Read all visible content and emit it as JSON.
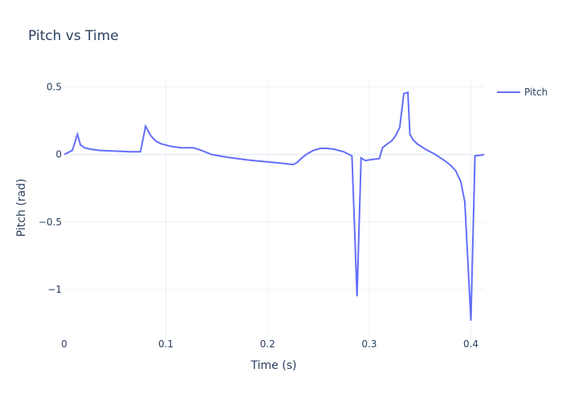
{
  "chart_data": {
    "type": "line",
    "title": "Pitch vs Time",
    "xlabel": "Time (s)",
    "ylabel": "Pitch (rad)",
    "xlim": [
      0,
      0.413
    ],
    "ylim": [
      -1.35,
      0.55
    ],
    "xticks": [
      0,
      0.1,
      0.2,
      0.3,
      0.4
    ],
    "xtick_labels": [
      "0",
      "0.1",
      "0.2",
      "0.3",
      "0.4"
    ],
    "yticks": [
      0.5,
      0,
      -0.5,
      -1
    ],
    "ytick_labels": [
      "0.5",
      "0",
      "−0.5",
      "−1"
    ],
    "grid": true,
    "legend_position": "top-right",
    "series": [
      {
        "name": "Pitch",
        "color": "#636efa",
        "x": [
          0,
          0.008,
          0.013,
          0.016,
          0.02,
          0.025,
          0.035,
          0.05,
          0.065,
          0.075,
          0.08,
          0.085,
          0.09,
          0.095,
          0.1,
          0.105,
          0.11,
          0.115,
          0.12,
          0.127,
          0.135,
          0.145,
          0.16,
          0.18,
          0.2,
          0.215,
          0.225,
          0.229,
          0.233,
          0.238,
          0.245,
          0.252,
          0.258,
          0.265,
          0.275,
          0.283,
          0.288,
          0.292,
          0.296,
          0.3,
          0.305,
          0.31,
          0.313,
          0.318,
          0.322,
          0.326,
          0.33,
          0.334,
          0.338,
          0.34,
          0.343,
          0.347,
          0.355,
          0.365,
          0.375,
          0.38,
          0.385,
          0.39,
          0.394,
          0.4,
          0.404,
          0.41,
          0.413
        ],
        "y": [
          0,
          0.03,
          0.15,
          0.07,
          0.05,
          0.04,
          0.03,
          0.025,
          0.02,
          0.02,
          0.21,
          0.14,
          0.1,
          0.08,
          0.07,
          0.06,
          0.055,
          0.05,
          0.05,
          0.05,
          0.03,
          0.0,
          -0.02,
          -0.04,
          -0.055,
          -0.065,
          -0.075,
          -0.06,
          -0.03,
          0.0,
          0.03,
          0.045,
          0.045,
          0.04,
          0.02,
          -0.01,
          -1.05,
          -0.025,
          -0.045,
          -0.04,
          -0.035,
          -0.03,
          0.05,
          0.08,
          0.1,
          0.14,
          0.2,
          0.45,
          0.46,
          0.15,
          0.11,
          0.08,
          0.04,
          0.0,
          -0.05,
          -0.08,
          -0.12,
          -0.2,
          -0.35,
          -1.23,
          -0.01,
          -0.005,
          0.0
        ]
      }
    ]
  }
}
